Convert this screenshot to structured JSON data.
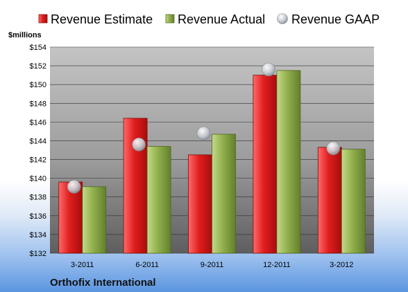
{
  "colors": {
    "estimate": "#d91c1c",
    "actual": "#8fae4a",
    "gaap": "#b8bcc4"
  },
  "company": "Orthofix International",
  "chart_data": {
    "type": "bar",
    "unit_label": "$millions",
    "categories": [
      "3-2011",
      "6-2011",
      "9-2011",
      "12-2011",
      "3-2012"
    ],
    "series": [
      {
        "name": "Revenue Estimate",
        "kind": "bar",
        "values": [
          139.6,
          146.4,
          142.5,
          151.0,
          143.3
        ]
      },
      {
        "name": "Revenue Actual",
        "kind": "bar",
        "values": [
          139.1,
          143.4,
          144.7,
          151.5,
          143.1
        ]
      },
      {
        "name": "Revenue GAAP",
        "kind": "marker",
        "values": [
          139.1,
          143.6,
          144.8,
          151.6,
          143.2
        ]
      }
    ],
    "ylim": [
      132,
      154
    ],
    "yticks": [
      "$132",
      "$134",
      "$136",
      "$138",
      "$140",
      "$142",
      "$144",
      "$146",
      "$148",
      "$150",
      "$152",
      "$154"
    ],
    "grid": true,
    "legend": "top"
  }
}
